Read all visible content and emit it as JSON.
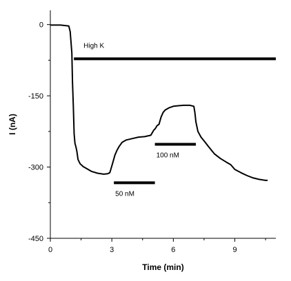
{
  "chart_data": {
    "type": "line",
    "title": "",
    "xlabel": "Time (min)",
    "ylabel": "I (nA)",
    "xlim": [
      0,
      11
    ],
    "ylim": [
      -450,
      30
    ],
    "x_ticks": [
      0,
      3,
      6,
      9
    ],
    "y_ticks": [
      0,
      -150,
      -300,
      -450
    ],
    "x_tick_labels": [
      "0",
      "3",
      "6",
      "9"
    ],
    "y_tick_labels": [
      "0",
      "-150",
      "-300",
      "-450"
    ],
    "grid": false,
    "color": "#000000",
    "series": [
      {
        "x": [
          0,
          0.5,
          0.9,
          0.97,
          1.05,
          1.08,
          1.12,
          1.16,
          1.2,
          1.25,
          1.3,
          1.35,
          1.45,
          1.6,
          1.8,
          2.0,
          2.3,
          2.6,
          2.8,
          2.9,
          2.95,
          3.05,
          3.15,
          3.25,
          3.35,
          3.5,
          3.7,
          4.0,
          4.3,
          4.6,
          4.9,
          5.05,
          5.1,
          5.15,
          5.2,
          5.3,
          5.4,
          5.5,
          5.6,
          5.8,
          6.0,
          6.2,
          6.5,
          6.8,
          7.0,
          7.05,
          7.1,
          7.2,
          7.35,
          7.5,
          7.7,
          8.0,
          8.3,
          8.6,
          8.8,
          9.0,
          9.3,
          9.6,
          9.9,
          10.2,
          10.5,
          10.6
        ],
        "y": [
          -1,
          -1,
          -3,
          -15,
          -60,
          -120,
          -170,
          -230,
          -250,
          -258,
          -268,
          -284,
          -293,
          -299,
          -304,
          -309,
          -313,
          -315,
          -314,
          -312,
          -305,
          -290,
          -275,
          -265,
          -257,
          -248,
          -243,
          -240,
          -237,
          -236,
          -233,
          -222,
          -220,
          -217,
          -213,
          -210,
          -195,
          -185,
          -180,
          -175,
          -172,
          -171,
          -170,
          -170,
          -172,
          -185,
          -205,
          -225,
          -237,
          -245,
          -256,
          -272,
          -282,
          -290,
          -295,
          -305,
          -312,
          -318,
          -323,
          -326,
          -328,
          -328
        ]
      }
    ],
    "bars": [
      {
        "label": "High K",
        "x_start": 1.15,
        "x_end": 11,
        "y": -72
      },
      {
        "label": "50 nM",
        "x_start": 3.1,
        "x_end": 5.1,
        "y": -333
      },
      {
        "label": "100 nM",
        "x_start": 5.1,
        "x_end": 7.1,
        "y": -252
      }
    ]
  }
}
